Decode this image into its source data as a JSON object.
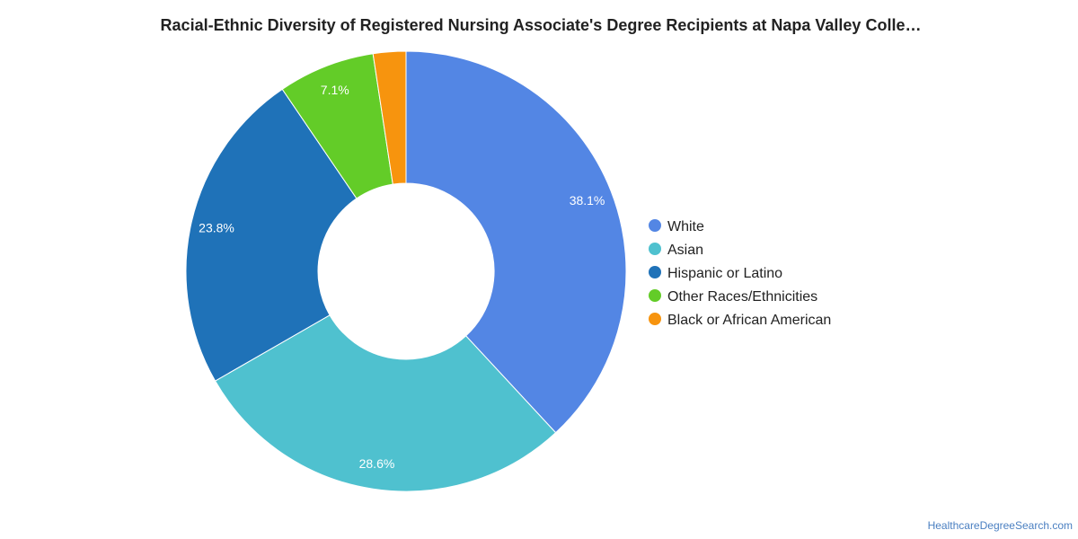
{
  "chart_data": {
    "type": "pie",
    "donut": true,
    "title": "Racial-Ethnic Diversity of Registered Nursing Associate's Degree Recipients at Napa Valley Colle…",
    "slices": [
      {
        "label": "White",
        "value": 38.1,
        "value_label": "38.1%",
        "color": "#5386e4"
      },
      {
        "label": "Asian",
        "value": 28.6,
        "value_label": "28.6%",
        "color": "#4fc1cf"
      },
      {
        "label": "Hispanic or Latino",
        "value": 23.8,
        "value_label": "23.8%",
        "color": "#1f72b8"
      },
      {
        "label": "Other Races/Ethnicities",
        "value": 7.1,
        "value_label": "7.1%",
        "color": "#63cc28"
      },
      {
        "label": "Black or African American",
        "value": 2.4,
        "value_label": "",
        "color": "#f7940e"
      }
    ],
    "legend_position": "right"
  },
  "footer": {
    "source": "HealthcareDegreeSearch.com"
  }
}
